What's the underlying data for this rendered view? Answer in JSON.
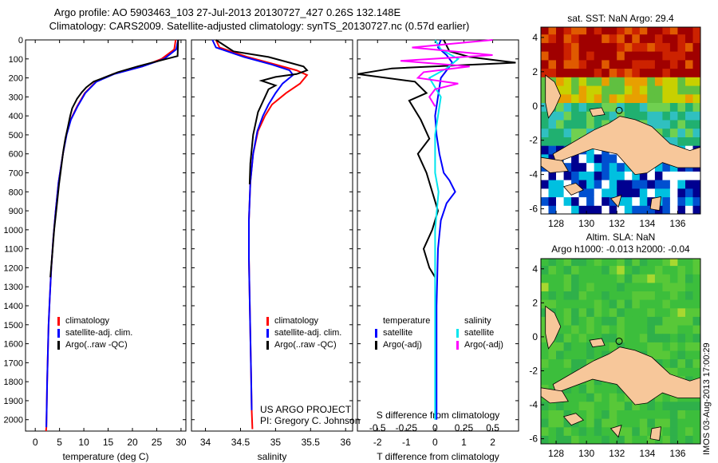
{
  "header": {
    "line1": "Argo profile: AO 5903463_103 27-Jul-2013 20130727_427 0.26S 132.148E",
    "line2": "Climatology: CARS2009. Satellite-adjusted climatology: synTS_20130727.nc (0.57d earlier)"
  },
  "colors": {
    "climatology": "#ff0000",
    "satellite": "#0000ff",
    "argo": "#000000",
    "sat_salinity": "#00e5ee",
    "argo_salinity_diff": "#ff00ff",
    "land": "#f7c79a"
  },
  "chart_data": [
    {
      "type": "line",
      "panel": "temperature",
      "xlabel": "temperature (deg C)",
      "ylabel": "",
      "xlim": [
        -2,
        31
      ],
      "ylim": [
        2060,
        0
      ],
      "xticks": [
        "0",
        "5",
        "10",
        "15",
        "20",
        "25",
        "30"
      ],
      "yticks": [
        "0",
        "100",
        "200",
        "300",
        "400",
        "500",
        "600",
        "700",
        "800",
        "900",
        "1000",
        "1100",
        "1200",
        "1300",
        "1400",
        "1500",
        "1600",
        "1700",
        "1800",
        "1900",
        "2000"
      ],
      "series": [
        {
          "name": "climatology",
          "color": "#ff0000",
          "x": [
            28.9,
            28.6,
            26,
            22,
            16,
            12.5,
            10.2,
            8.6,
            7.3,
            6.4,
            5.7,
            4.8,
            4.2,
            3.7,
            3.3,
            3.0,
            2.75,
            2.6,
            2.45,
            2.35,
            2.28,
            2.22
          ],
          "y": [
            0,
            50,
            100,
            140,
            180,
            220,
            280,
            350,
            420,
            500,
            600,
            750,
            900,
            1050,
            1200,
            1350,
            1500,
            1650,
            1800,
            1950,
            2040,
            2060
          ]
        },
        {
          "name": "satellite-adj. clim.",
          "color": "#0000ff",
          "x": [
            29.4,
            29.0,
            26.5,
            22,
            16.2,
            12.6,
            10.3,
            8.7,
            7.35,
            6.45,
            5.7,
            4.8,
            4.2,
            3.7,
            3.3,
            3.0,
            2.75,
            2.6,
            2.45,
            2.35,
            2.28
          ],
          "y": [
            0,
            50,
            100,
            140,
            180,
            220,
            280,
            350,
            420,
            500,
            600,
            750,
            900,
            1050,
            1200,
            1350,
            1500,
            1650,
            1800,
            1950,
            2040
          ]
        },
        {
          "name": "Argo(..raw -QC)",
          "color": "#000000",
          "x": [
            29.4,
            29.3,
            27,
            24,
            21,
            17,
            14,
            12,
            10.5,
            9.6,
            8.6,
            7.6,
            7.2,
            6.7,
            6.2,
            5.8,
            5.4,
            4.9,
            4.4,
            3.9,
            3.5,
            3.1
          ],
          "y": [
            0,
            85,
            100,
            120,
            140,
            170,
            200,
            220,
            250,
            275,
            310,
            360,
            400,
            460,
            520,
            580,
            660,
            760,
            880,
            1000,
            1130,
            1250
          ]
        }
      ]
    },
    {
      "type": "line",
      "panel": "salinity",
      "xlabel": "salinity",
      "ylabel": "",
      "xlim": [
        33.8,
        36.1
      ],
      "ylim": [
        2060,
        0
      ],
      "xticks": [
        "34",
        "34.5",
        "35",
        "35.5",
        "36"
      ],
      "series": [
        {
          "name": "climatology",
          "color": "#ff0000",
          "x": [
            34.15,
            34.2,
            34.6,
            35.0,
            35.3,
            35.45,
            35.35,
            35.15,
            34.95,
            34.85,
            34.75,
            34.68,
            34.64,
            34.62,
            34.62,
            34.63,
            34.64,
            34.65,
            34.66,
            34.67
          ],
          "y": [
            0,
            40,
            90,
            130,
            160,
            185,
            230,
            280,
            340,
            400,
            480,
            600,
            750,
            950,
            1150,
            1350,
            1550,
            1750,
            1950,
            2050
          ]
        },
        {
          "name": "satellite-adj. clim.",
          "color": "#0000ff",
          "x": [
            34.1,
            34.15,
            34.55,
            34.95,
            35.2,
            35.25,
            35.1,
            35.0,
            34.9,
            34.82,
            34.74,
            34.68,
            34.64,
            34.62,
            34.62,
            34.63,
            34.64,
            34.65,
            34.66
          ],
          "y": [
            0,
            40,
            90,
            130,
            160,
            185,
            230,
            280,
            340,
            400,
            480,
            600,
            750,
            950,
            1150,
            1350,
            1550,
            1750,
            1950
          ]
        },
        {
          "name": "Argo(..raw -QC)",
          "color": "#000000",
          "x": [
            34.15,
            34.4,
            34.9,
            35.2,
            35.4,
            35.45,
            35.3,
            35.0,
            34.8,
            35.0,
            34.9,
            34.85,
            34.75,
            34.68,
            34.64,
            34.63
          ],
          "y": [
            0,
            60,
            90,
            120,
            140,
            160,
            180,
            195,
            215,
            240,
            260,
            300,
            380,
            500,
            650,
            760
          ]
        }
      ]
    },
    {
      "type": "line",
      "panel": "difference",
      "xlabel": "T difference from climatology",
      "xlabel_top": "S difference from climatology",
      "xlim": [
        -2.7,
        2.9
      ],
      "ylim": [
        2060,
        0
      ],
      "xticks": [
        "-2",
        "-1",
        "0",
        "1",
        "2"
      ],
      "xticks_s": [
        "-0.5",
        "-0.25",
        "0",
        "0.25",
        "0.5"
      ],
      "series": [
        {
          "name": "satellite",
          "group": "temperature",
          "color": "#0000ff",
          "x": [
            0.2,
            0.1,
            0.4,
            0.6,
            0.4,
            0.2,
            0.1,
            0.0,
            0.05,
            0.15,
            0.3,
            0.5,
            0.7,
            0.4,
            0.2,
            0.1,
            0.05,
            0.05,
            0.05
          ],
          "y": [
            0,
            40,
            80,
            120,
            160,
            200,
            300,
            400,
            500,
            600,
            700,
            740,
            800,
            860,
            950,
            1100,
            1400,
            1700,
            2000
          ]
        },
        {
          "name": "Argo(-adj)",
          "group": "temperature",
          "color": "#000000",
          "x": [
            0.3,
            0.5,
            1.2,
            2.8,
            -1.5,
            -2.7,
            -0.7,
            -0.3,
            -0.9,
            -0.5,
            -0.2,
            -0.6,
            -0.3,
            -0.1,
            0.1,
            -0.1,
            -0.4,
            -0.2,
            0.0
          ],
          "y": [
            0,
            60,
            90,
            120,
            150,
            180,
            220,
            280,
            320,
            420,
            520,
            600,
            700,
            800,
            900,
            1000,
            1100,
            1200,
            1250
          ]
        },
        {
          "name": "satellite",
          "group": "salinity",
          "color": "#00e5ee",
          "x": [
            0.0,
            0.05,
            0.2,
            0.1,
            -0.05,
            0.05,
            0.0,
            0.0,
            0.03,
            0.0,
            0.0,
            0.0
          ],
          "y": [
            0,
            50,
            100,
            150,
            200,
            300,
            500,
            700,
            800,
            1000,
            1500,
            2000
          ]
        },
        {
          "name": "Argo(-adj)",
          "group": "salinity",
          "color": "#ff00ff",
          "x": [
            0.5,
            -0.2,
            0.5,
            -0.3,
            0.3,
            -0.1,
            -0.15,
            0.2,
            0.0,
            -0.05,
            0.0
          ],
          "y": [
            0,
            40,
            80,
            110,
            140,
            170,
            200,
            230,
            260,
            300,
            350
          ]
        }
      ]
    },
    {
      "type": "heatmap",
      "panel": "sst-map",
      "title": "sat. SST: NaN Argo: 29.4",
      "xlim": [
        127,
        137.5
      ],
      "ylim": [
        -6.3,
        4.6
      ],
      "xticks": [
        "128",
        "130",
        "132",
        "134",
        "136"
      ],
      "yticks": [
        "4",
        "2",
        "0",
        "-2",
        "-4",
        "-6"
      ]
    },
    {
      "type": "heatmap",
      "panel": "sla-map",
      "title_line1": "Altim. SLA: NaN",
      "title_line2": "Argo h1000: -0.013 h2000: -0.04",
      "xlim": [
        127,
        137.5
      ],
      "ylim": [
        -6.3,
        4.6
      ],
      "xticks": [
        "128",
        "130",
        "132",
        "134",
        "136"
      ],
      "yticks": [
        "4",
        "2",
        "0",
        "-2",
        "-4",
        "-6"
      ]
    }
  ],
  "legends": {
    "temperature": [
      "climatology",
      "satellite-adj. clim.",
      "Argo(..raw -QC)"
    ],
    "salinity": [
      "climatology",
      "satellite-adj. clim.",
      "Argo(..raw -QC)"
    ],
    "difference_headers": {
      "temperature": "temperature",
      "salinity": "salinity"
    },
    "difference_items": {
      "t_sat": "satellite",
      "t_argo": "Argo(-adj)",
      "s_sat": "satellite",
      "s_argo": "Argo(-adj)"
    }
  },
  "project": {
    "line1": "US ARGO PROJECT",
    "line2": "PI: Gregory C. Johnson"
  },
  "stamp": "IMOS 03-Aug-2013 17:00:29"
}
